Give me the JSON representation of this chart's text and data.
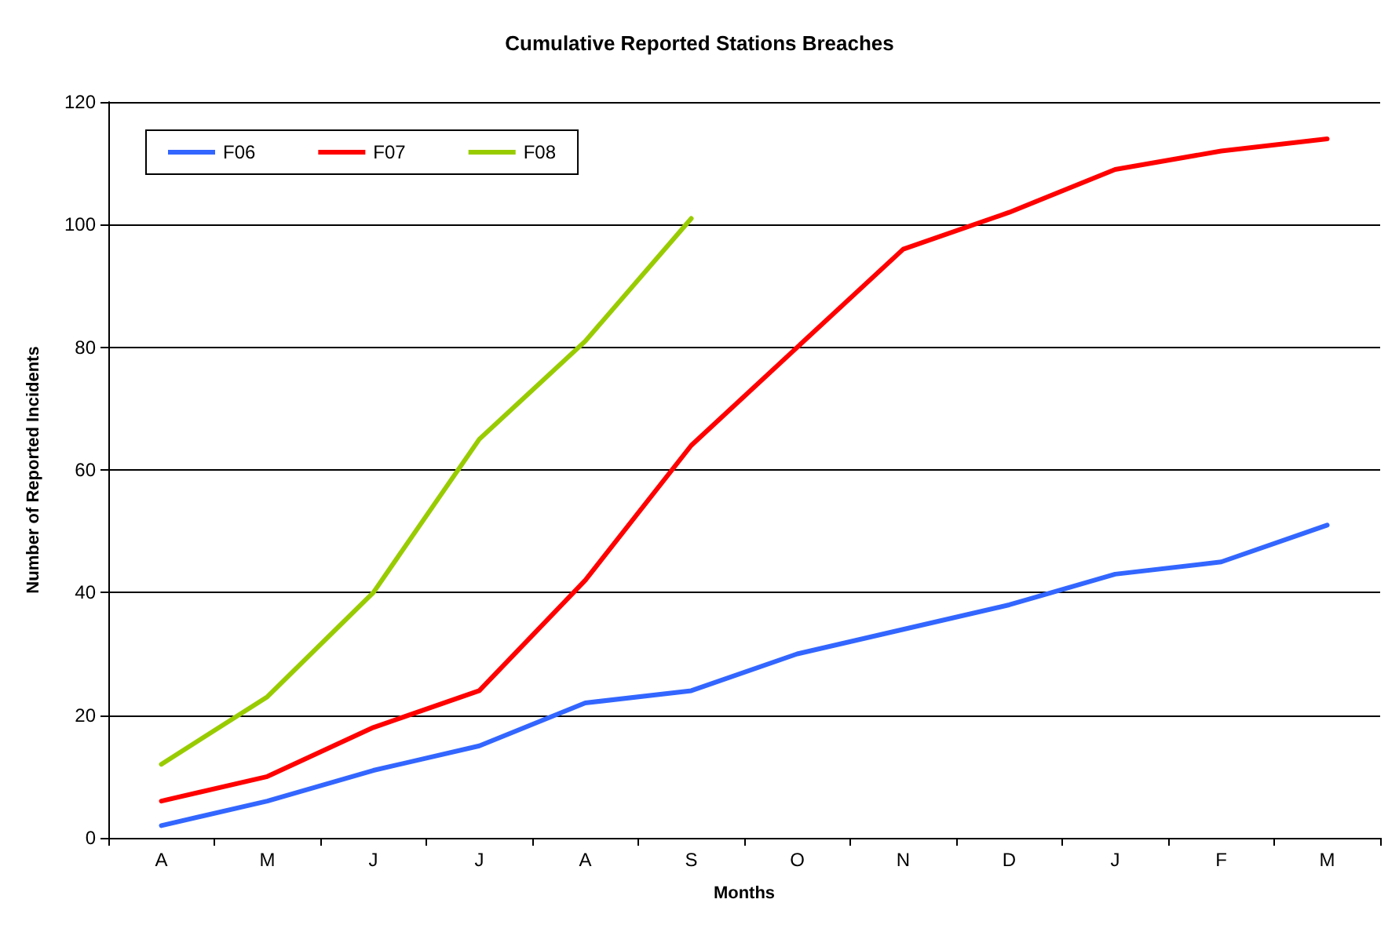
{
  "chart_data": {
    "type": "line",
    "title": "Cumulative Reported Stations Breaches",
    "xlabel": "Months",
    "ylabel": "Number of Reported Incidents",
    "categories": [
      "A",
      "M",
      "J",
      "J",
      "A",
      "S",
      "O",
      "N",
      "D",
      "J",
      "F",
      "M"
    ],
    "series": [
      {
        "name": "F06",
        "color": "#3366ff",
        "values": [
          2,
          6,
          11,
          15,
          22,
          24,
          30,
          34,
          38,
          43,
          45,
          51
        ]
      },
      {
        "name": "F07",
        "color": "#ff0000",
        "values": [
          6,
          10,
          18,
          24,
          42,
          64,
          80,
          96,
          102,
          109,
          112,
          114
        ]
      },
      {
        "name": "F08",
        "color": "#99cc00",
        "values": [
          12,
          23,
          40,
          65,
          81,
          101,
          null,
          null,
          null,
          null,
          null,
          null
        ]
      }
    ],
    "ylim": [
      0,
      120
    ],
    "yticks": [
      0,
      20,
      40,
      60,
      80,
      100,
      120
    ],
    "grid": "y",
    "legend": "top left",
    "marker": "none",
    "line_style": "solid"
  }
}
